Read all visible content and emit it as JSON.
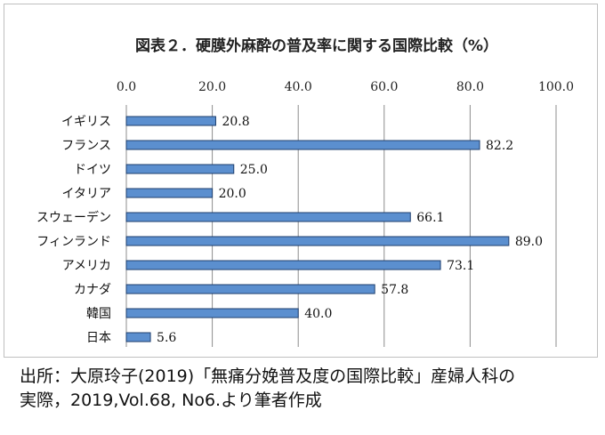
{
  "chart_data": {
    "type": "bar",
    "orientation": "horizontal",
    "title": "図表２．硬膜外麻酔の普及率に関する国際比較（%）",
    "categories": [
      "イギリス",
      "フランス",
      "ドイツ",
      "イタリア",
      "スウェーデン",
      "フィンランド",
      "アメリカ",
      "カナダ",
      "韓国",
      "日本"
    ],
    "values": [
      20.8,
      82.2,
      25.0,
      20.0,
      66.1,
      89.0,
      73.1,
      57.8,
      40.0,
      5.6
    ],
    "value_labels": [
      "20.8",
      "82.2",
      "25.0",
      "20.0",
      "66.1",
      "89.0",
      "73.1",
      "57.8",
      "40.0",
      "5.6"
    ],
    "xlim": [
      0,
      100
    ],
    "xticks": [
      0,
      20,
      40,
      60,
      80,
      100
    ],
    "xtick_labels": [
      "0.0",
      "20.0",
      "40.0",
      "60.0",
      "80.0",
      "100.0"
    ],
    "x_axis_position": "top",
    "grid": true,
    "legend": "none",
    "bar_color": "#5b8fcf",
    "bar_edge_color": "#1f3f6e",
    "xlabel": "",
    "ylabel": ""
  },
  "source": {
    "line1": "出所：大原玲子(2019)「無痛分娩普及度の国際比較」産婦人科の",
    "line2": "実際，2019,Vol.68, No6.より筆者作成"
  }
}
